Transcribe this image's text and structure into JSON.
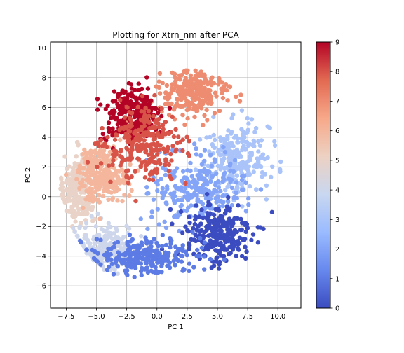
{
  "chart_data": {
    "type": "scatter",
    "title": "Plotting for Xtrn_nm after PCA",
    "xlabel": "PC 1",
    "ylabel": "PC 2",
    "xlim": [
      -8.8,
      11.9
    ],
    "ylim": [
      -7.5,
      10.4
    ],
    "x_ticks": [
      -7.5,
      -5.0,
      -2.5,
      0.0,
      2.5,
      5.0,
      7.5,
      10.0
    ],
    "x_tick_labels": [
      "−7.5",
      "−5.0",
      "−2.5",
      "0.0",
      "2.5",
      "5.0",
      "7.5",
      "10.0"
    ],
    "y_ticks": [
      -6,
      -4,
      -2,
      0,
      2,
      4,
      6,
      8,
      10
    ],
    "y_tick_labels": [
      "−6",
      "−4",
      "−2",
      "0",
      "2",
      "4",
      "6",
      "8",
      "10"
    ],
    "grid": true,
    "colormap": "coolwarm",
    "colorbar": {
      "range": [
        0,
        9
      ],
      "ticks": [
        0,
        1,
        2,
        3,
        4,
        5,
        6,
        7,
        8,
        9
      ],
      "tick_labels": [
        "0",
        "1",
        "2",
        "3",
        "4",
        "5",
        "6",
        "7",
        "8",
        "9"
      ],
      "colors": [
        "#3b4cc0",
        "#6788ee",
        "#9abbff",
        "#c9d7f0",
        "#edd1c2",
        "#f7a889",
        "#e26952",
        "#b40426"
      ]
    },
    "classes": [
      {
        "label": 0,
        "center": [
          5.0,
          -2.5
        ],
        "spread": [
          2.2,
          1.6
        ]
      },
      {
        "label": 1,
        "center": [
          -1.0,
          -4.0
        ],
        "spread": [
          3.2,
          0.9
        ]
      },
      {
        "label": 2,
        "center": [
          3.5,
          0.5
        ],
        "spread": [
          3.0,
          1.8
        ]
      },
      {
        "label": 3,
        "center": [
          6.5,
          2.5
        ],
        "spread": [
          2.2,
          1.8
        ]
      },
      {
        "label": 4,
        "center": [
          -4.0,
          -3.5
        ],
        "spread": [
          2.0,
          1.2
        ]
      },
      {
        "label": 5,
        "center": [
          -6.5,
          0.5
        ],
        "spread": [
          1.0,
          1.8
        ]
      },
      {
        "label": 6,
        "center": [
          -4.5,
          1.5
        ],
        "spread": [
          1.6,
          1.4
        ]
      },
      {
        "label": 7,
        "center": [
          3.0,
          7.0
        ],
        "spread": [
          2.2,
          1.1
        ]
      },
      {
        "label": 8,
        "center": [
          -1.0,
          3.5
        ],
        "spread": [
          2.4,
          1.8
        ]
      },
      {
        "label": 9,
        "center": [
          -2.0,
          5.5
        ],
        "spread": [
          1.8,
          1.5
        ]
      }
    ],
    "draw_order": [
      5,
      4,
      6,
      3,
      2,
      7,
      0,
      9,
      8,
      1
    ],
    "points_per_class": 260
  }
}
